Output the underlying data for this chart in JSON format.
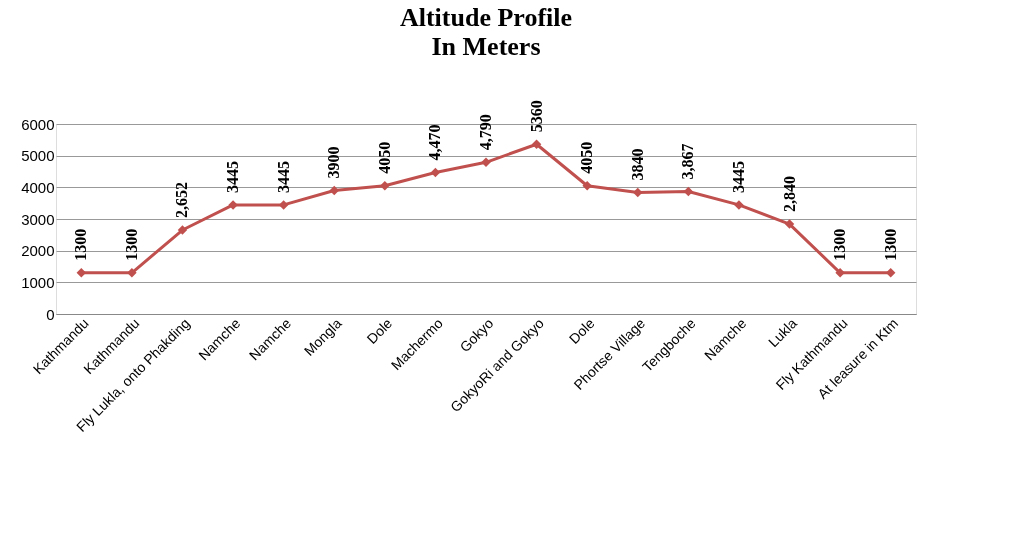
{
  "chart_data": {
    "type": "line",
    "title": "Altitude Profile",
    "subtitle": "In Meters",
    "categories": [
      "Kathmandu",
      "Kathmandu",
      "Fly Lukla, onto Phakding",
      "Namche",
      "Namche",
      "Mongla",
      "Dole",
      "Machermo",
      "Gokyo",
      "GokyoRi and Gokyo",
      "Dole",
      "Phortse Village",
      "Tengboche",
      "Namche",
      "Lukla",
      "Fly Kathmandu",
      "At leasure in Ktm"
    ],
    "series": [
      {
        "color": "#c0504d",
        "values": [
          1300,
          1300,
          2652,
          3445,
          3445,
          3900,
          4050,
          4470,
          4790,
          5360,
          4050,
          3840,
          3867,
          3445,
          2840,
          1300,
          1300
        ],
        "value_labels": [
          "1300",
          "1300",
          "2,652",
          "3445",
          "3445",
          "3900",
          "4050",
          "4,470",
          "4,790",
          "5360",
          "4050",
          "3840",
          "3,867",
          "3445",
          "2,840",
          "1300",
          "1300"
        ]
      }
    ],
    "ylim": [
      0,
      6000
    ],
    "yticks": [
      0,
      1000,
      2000,
      3000,
      4000,
      5000,
      6000
    ],
    "grid": "y",
    "marker": "diamond",
    "line_style": "solid"
  }
}
